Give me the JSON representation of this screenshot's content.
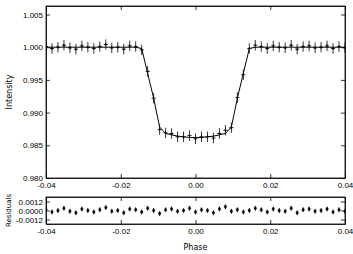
{
  "chart_data": [
    {
      "type": "scatter",
      "ylabel": "Intensity",
      "x": [
        -0.04,
        -0.0384,
        -0.0368,
        -0.0352,
        -0.0336,
        -0.032,
        -0.0304,
        -0.0288,
        -0.0272,
        -0.0256,
        -0.024,
        -0.0224,
        -0.0208,
        -0.0192,
        -0.0176,
        -0.016,
        -0.0144,
        -0.0128,
        -0.0112,
        -0.0096,
        -0.008,
        -0.0064,
        -0.0048,
        -0.0032,
        -0.0016,
        0,
        0.0016,
        0.0032,
        0.0048,
        0.0064,
        0.008,
        0.0096,
        0.0112,
        0.0128,
        0.0144,
        0.016,
        0.0176,
        0.0192,
        0.0208,
        0.0224,
        0.024,
        0.0256,
        0.0272,
        0.0288,
        0.0304,
        0.032,
        0.0336,
        0.0352,
        0.0368,
        0.0384,
        0.04
      ],
      "xlim": [
        -0.04,
        0.04
      ],
      "xticks": [
        -0.04,
        -0.02,
        {
          "value": 0,
          "label": "0.00"
        },
        0.02,
        0.04
      ],
      "ylim": [
        0.98,
        1.0063
      ],
      "yticks": [
        {
          "value": 0.98,
          "label": "0.980"
        },
        0.985,
        {
          "value": 0.99,
          "label": "0.990"
        },
        0.995,
        {
          "value": 1.0,
          "label": "1.000"
        },
        1.005
      ],
      "series": [
        {
          "type": "scatter",
          "marker": "plus",
          "color": "#000000",
          "values": [
            1.0001,
            0.9998,
            1.0,
            1.0003,
            0.9999,
            0.9997,
            1.0002,
            1.0,
            0.9998,
            1.0001,
            1.0004,
            0.9999,
            1.0,
            0.9997,
            1.0002,
            1.0001,
            0.9996,
            0.9963,
            0.9922,
            0.9874,
            0.9869,
            0.9868,
            0.9863,
            0.9863,
            0.9865,
            0.986,
            0.9863,
            0.9863,
            0.9861,
            0.9868,
            0.9873,
            0.9877,
            0.9923,
            0.9958,
            0.9998,
            1.0003,
            1.0001,
            0.9998,
            1.0002,
            1.0,
            0.9999,
            1.0003,
            0.9997,
            1.0001,
            1.0002,
            0.9999,
            1.0,
            1.0002,
            0.9998,
            1.0001,
            0.9999
          ],
          "errors": [
            0.0008,
            0.0008,
            0.0008,
            0.0008,
            0.0008,
            0.0008,
            0.0008,
            0.0008,
            0.0008,
            0.0008,
            0.0008,
            0.0008,
            0.0008,
            0.0008,
            0.0008,
            0.0008,
            0.0008,
            0.0008,
            0.0008,
            0.0008,
            0.0008,
            0.0008,
            0.0008,
            0.0008,
            0.0008,
            0.0008,
            0.0008,
            0.0008,
            0.0008,
            0.0008,
            0.0008,
            0.0008,
            0.0008,
            0.0008,
            0.0008,
            0.0008,
            0.0008,
            0.0008,
            0.0008,
            0.0008,
            0.0008,
            0.0008,
            0.0008,
            0.0008,
            0.0008,
            0.0008,
            0.0008,
            0.0008,
            0.0008,
            0.0008,
            0.0008
          ]
        },
        {
          "type": "line",
          "line_style": "solid",
          "color": "#000000",
          "values": [
            1.0,
            1.0,
            1.0,
            1.0,
            1.0,
            1.0,
            1.0,
            1.0,
            1.0,
            1.0,
            1.0,
            1.0,
            1.0,
            1.0,
            1.0,
            1.0,
            0.9998,
            0.996,
            0.9922,
            0.9878,
            0.9868,
            0.9866,
            0.9864,
            0.9863,
            0.9862,
            0.9862,
            0.9862,
            0.9863,
            0.9864,
            0.9866,
            0.9868,
            0.9878,
            0.9922,
            0.996,
            0.9998,
            1.0,
            1.0,
            1.0,
            1.0,
            1.0,
            1.0,
            1.0,
            1.0,
            1.0,
            1.0,
            1.0,
            1.0,
            1.0,
            1.0,
            1.0,
            1.0
          ]
        }
      ]
    },
    {
      "type": "scatter",
      "xlabel": "Phase",
      "ylabel": "Residuals",
      "x": [
        -0.04,
        -0.0384,
        -0.0368,
        -0.0352,
        -0.0336,
        -0.032,
        -0.0304,
        -0.0288,
        -0.0272,
        -0.0256,
        -0.024,
        -0.0224,
        -0.0208,
        -0.0192,
        -0.0176,
        -0.016,
        -0.0144,
        -0.0128,
        -0.0112,
        -0.0096,
        -0.008,
        -0.0064,
        -0.0048,
        -0.0032,
        -0.0016,
        0,
        0.0016,
        0.0032,
        0.0048,
        0.0064,
        0.008,
        0.0096,
        0.0112,
        0.0128,
        0.0144,
        0.016,
        0.0176,
        0.0192,
        0.0208,
        0.0224,
        0.024,
        0.0256,
        0.0272,
        0.0288,
        0.0304,
        0.032,
        0.0336,
        0.0352,
        0.0368,
        0.0384,
        0.04
      ],
      "xlim": [
        -0.04,
        0.04
      ],
      "xticks": [
        -0.04,
        -0.02,
        {
          "value": 0,
          "label": "0.00"
        },
        0.02,
        0.04
      ],
      "ylim": [
        -0.0018,
        0.0018
      ],
      "yticks": [
        -0.0012,
        {
          "value": 0,
          "label": "0.0000"
        },
        0.0012
      ],
      "series": [
        {
          "type": "scatter",
          "marker": "diamond",
          "color": "#000000",
          "values": [
            0.0001,
            -0.0002,
            0,
            0.0003,
            -0.0001,
            -0.0003,
            0.0002,
            0,
            -0.0002,
            0.0001,
            0.0004,
            -0.0001,
            0,
            -0.0003,
            0.0002,
            0.0001,
            -0.0002,
            0.0003,
            0,
            -0.0004,
            0.0001,
            0.0002,
            -0.0001,
            0,
            0.0003,
            -0.0002,
            0.0001,
            0,
            -0.0003,
            0.0002,
            0.0005,
            -0.0001,
            0.0001,
            -0.0002,
            0,
            0.0003,
            0.0001,
            -0.0002,
            0.0002,
            0,
            -0.0001,
            0.0003,
            -0.0003,
            0.0001,
            0.0002,
            -0.0001,
            0,
            0.0002,
            -0.0002,
            0.0001,
            -0.0001
          ]
        }
      ]
    }
  ]
}
